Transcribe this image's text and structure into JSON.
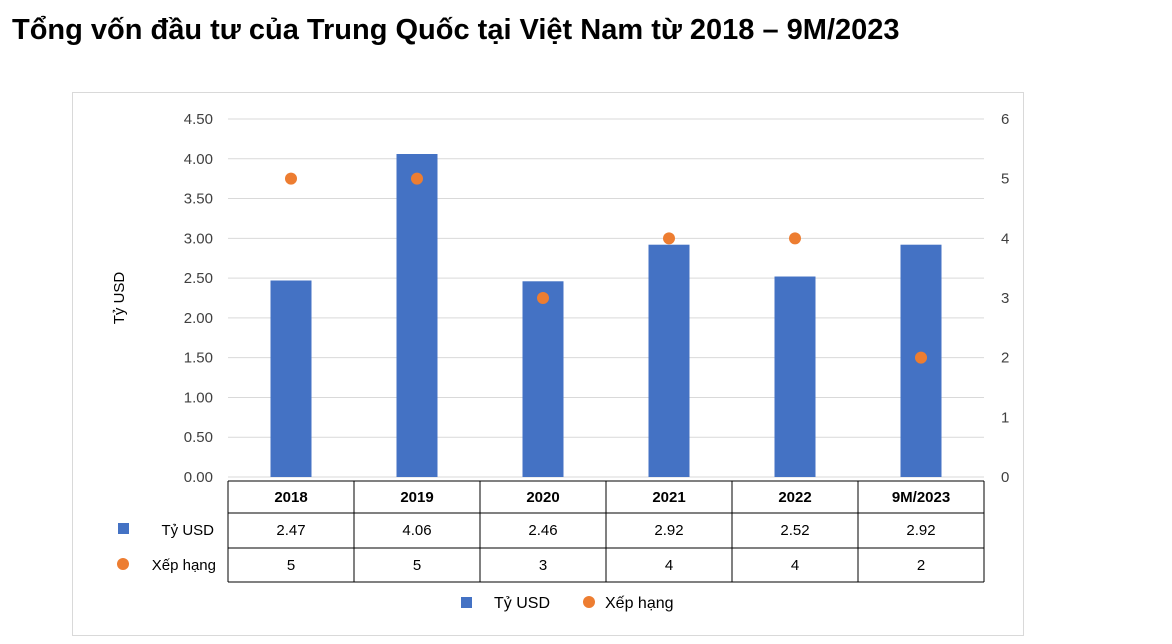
{
  "page": {
    "title": "Tổng vốn đầu tư của Trung Quốc tại Việt Nam từ 2018 – 9M/2023"
  },
  "chart_data": {
    "type": "bar",
    "categories": [
      "2018",
      "2019",
      "2020",
      "2021",
      "2022",
      "9M/2023"
    ],
    "series": [
      {
        "name": "Tỷ USD",
        "type": "bar",
        "axis": "left",
        "color": "#4472C4",
        "values": [
          2.47,
          4.06,
          2.46,
          2.92,
          2.52,
          2.92
        ]
      },
      {
        "name": "Xếp hạng",
        "type": "scatter",
        "axis": "right",
        "color": "#ED7D31",
        "values": [
          5,
          5,
          3,
          4,
          4,
          2
        ]
      }
    ],
    "ylabel": "Tỷ USD",
    "ylim": [
      0,
      4.5
    ],
    "yticks": [
      "0.00",
      "0.50",
      "1.00",
      "1.50",
      "2.00",
      "2.50",
      "3.00",
      "3.50",
      "4.00",
      "4.50"
    ],
    "y2lim": [
      0,
      6
    ],
    "y2ticks": [
      "0",
      "1",
      "2",
      "3",
      "4",
      "5",
      "6"
    ],
    "data_table": {
      "rows": [
        {
          "label": "Tỷ USD",
          "values": [
            "2.47",
            "4.06",
            "2.46",
            "2.92",
            "2.52",
            "2.92"
          ]
        },
        {
          "label": "Xếp hạng",
          "values": [
            "5",
            "5",
            "3",
            "4",
            "4",
            "2"
          ]
        }
      ]
    },
    "grid": true,
    "legend": "bottom-center"
  }
}
